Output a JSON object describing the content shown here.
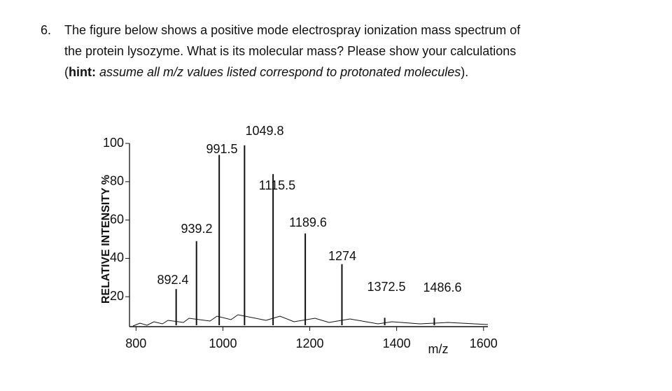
{
  "question": {
    "number": "6.",
    "lines": [
      "The figure below shows a positive mode electrospray ionization mass spectrum of",
      "the protein lysozyme.  What is its molecular mass?  Please show your calculations"
    ],
    "hint_open": "(",
    "hint_label": "hint:",
    "hint_text": " assume all m/z values listed correspond to protonated molecules",
    "hint_close": ")."
  },
  "chart_data": {
    "type": "stem",
    "x": [
      892.4,
      939.2,
      991.5,
      1049.8,
      1115.5,
      1189.6,
      1274,
      1372.5,
      1486.6
    ],
    "values": [
      24,
      49,
      94,
      99,
      84,
      53,
      37,
      9,
      9
    ],
    "color": "#111111",
    "x_label": "m/z",
    "y_label": "RELATIVE INTENSITY %",
    "xlim": [
      785,
      1610
    ],
    "ylim": [
      0,
      100
    ],
    "xticks": [
      800,
      1000,
      1200,
      1400,
      1600
    ],
    "yticks": [
      20,
      40,
      60,
      80,
      100
    ]
  }
}
